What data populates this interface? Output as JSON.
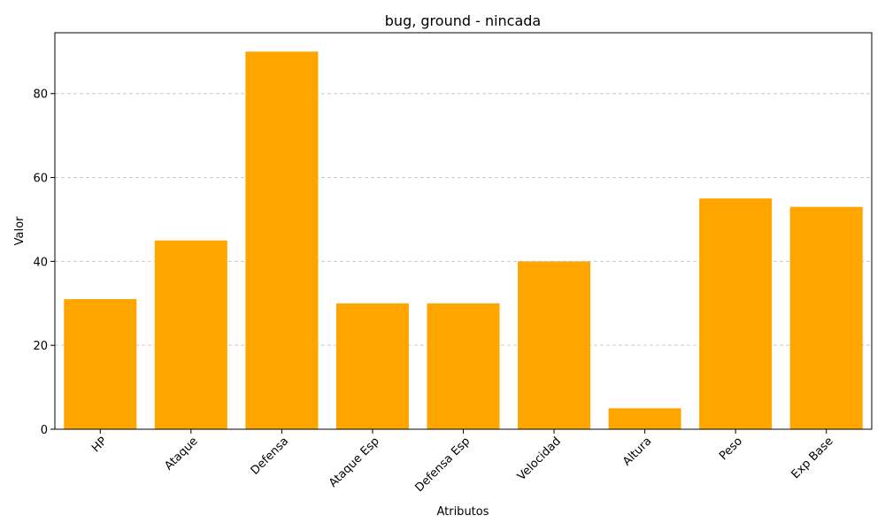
{
  "chart_data": {
    "type": "bar",
    "title": "bug, ground - nincada",
    "xlabel": "Atributos",
    "ylabel": "Valor",
    "categories": [
      "HP",
      "Ataque",
      "Defensa",
      "Ataque Esp",
      "Defensa Esp",
      "Velocidad",
      "Altura",
      "Peso",
      "Exp Base"
    ],
    "values": [
      31,
      45,
      90,
      30,
      30,
      40,
      5,
      55,
      53
    ],
    "ylim": [
      0,
      94.5
    ],
    "yticks": [
      0,
      20,
      40,
      60,
      80
    ],
    "bar_color": "#FFA500",
    "grid": "y-dashed",
    "x_tick_rotation": 45,
    "legend": "none"
  }
}
